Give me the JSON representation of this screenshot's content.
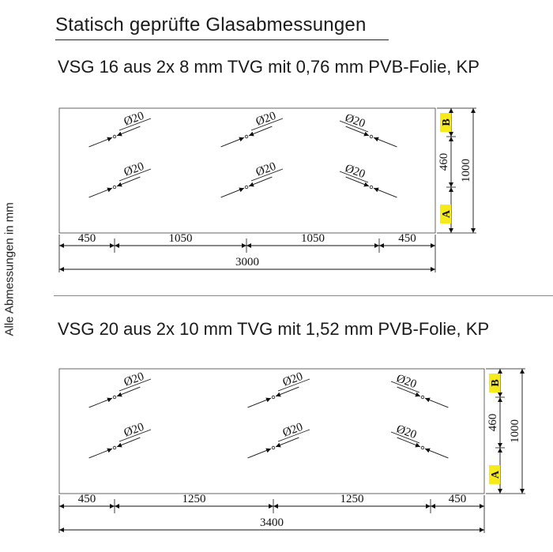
{
  "title": "Statisch geprüfte Glasabmessungen",
  "side_label": "Alle Abmessungen in mm",
  "hole_label": "Ø20",
  "highlight_color": "#f7ea1a",
  "panels": [
    {
      "heading": "VSG 16 aus 2x 8 mm TVG mit 0,76 mm PVB-Folie, KP",
      "bottom_dims": [
        "450",
        "1050",
        "1050",
        "450"
      ],
      "total_width": "3000",
      "dim_a": "A",
      "dim_b": "B",
      "dim_mid": "460",
      "total_height": "1000"
    },
    {
      "heading": "VSG 20 aus 2x 10 mm TVG mit 1,52 mm PVB-Folie, KP",
      "bottom_dims": [
        "450",
        "1250",
        "1250",
        "450"
      ],
      "total_width": "3400",
      "dim_a": "A",
      "dim_b": "B",
      "dim_mid": "460",
      "total_height": "1000"
    }
  ]
}
